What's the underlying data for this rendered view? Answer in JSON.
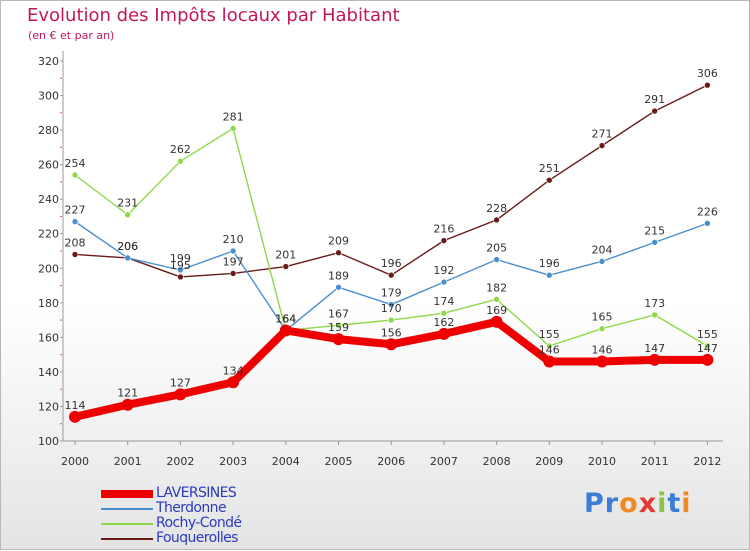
{
  "title": "Evolution des Impôts locaux par Habitant",
  "subtitle": "(en € et par an)",
  "logo": "Proxiti",
  "chart_data": {
    "type": "line",
    "x": [
      "2000",
      "2001",
      "2002",
      "2003",
      "2004",
      "2005",
      "2006",
      "2007",
      "2008",
      "2009",
      "2010",
      "2011",
      "2012"
    ],
    "ylim": [
      100,
      320
    ],
    "yticks": [
      100,
      120,
      140,
      160,
      180,
      200,
      220,
      240,
      260,
      280,
      300,
      320
    ],
    "grid": false,
    "legend_position": "bottom-left",
    "series": [
      {
        "name": "Fouquerolles",
        "color": "#6b1a1a",
        "values": [
          208,
          206,
          195,
          197,
          201,
          209,
          196,
          216,
          228,
          251,
          271,
          291,
          306
        ]
      },
      {
        "name": "Rochy-Condé",
        "color": "#8fd84a",
        "values": [
          254,
          231,
          262,
          281,
          164,
          167,
          170,
          174,
          182,
          155,
          165,
          173,
          155
        ]
      },
      {
        "name": "Therdonne",
        "color": "#4a8fd0",
        "values": [
          227,
          206,
          199,
          210,
          164,
          189,
          179,
          192,
          205,
          196,
          204,
          215,
          226
        ]
      },
      {
        "name": "LAVERSINES",
        "color": "#ee0000",
        "values": [
          114,
          121,
          127,
          134,
          164,
          159,
          156,
          162,
          169,
          146,
          146,
          147,
          147
        ]
      }
    ],
    "legend_order": [
      "LAVERSINES",
      "Therdonne",
      "Rochy-Condé",
      "Fouquerolles"
    ]
  }
}
